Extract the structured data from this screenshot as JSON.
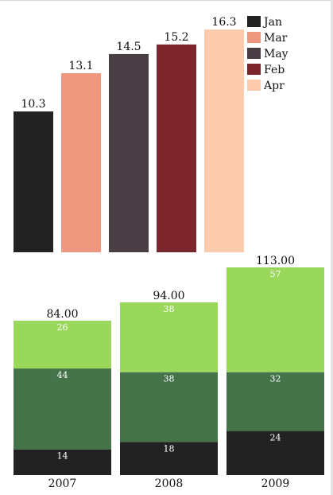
{
  "chart_data": [
    {
      "type": "bar",
      "categories": [
        "Jan",
        "Mar",
        "May",
        "Feb",
        "Apr"
      ],
      "values": [
        10.3,
        13.1,
        14.5,
        15.2,
        16.3
      ],
      "colors": [
        "#222222",
        "#EE967E",
        "#4A3E45",
        "#7D252C",
        "#FDCBAD"
      ],
      "ylim": [
        0,
        16.3
      ],
      "legend": {
        "position": "top-right",
        "entries": [
          "Jan",
          "Mar",
          "May",
          "Feb",
          "Apr"
        ]
      },
      "grid": false
    },
    {
      "type": "bar",
      "stacked": true,
      "categories": [
        "2007",
        "2008",
        "2009"
      ],
      "series": [
        {
          "values": [
            14,
            18,
            24
          ],
          "color": "#222222"
        },
        {
          "values": [
            44,
            38,
            32
          ],
          "color": "#45744A"
        },
        {
          "values": [
            26,
            38,
            57
          ],
          "color": "#99D85A"
        }
      ],
      "totals": [
        "84.00",
        "94.00",
        "113.00"
      ],
      "ylim": [
        0,
        113
      ],
      "grid": false
    }
  ]
}
